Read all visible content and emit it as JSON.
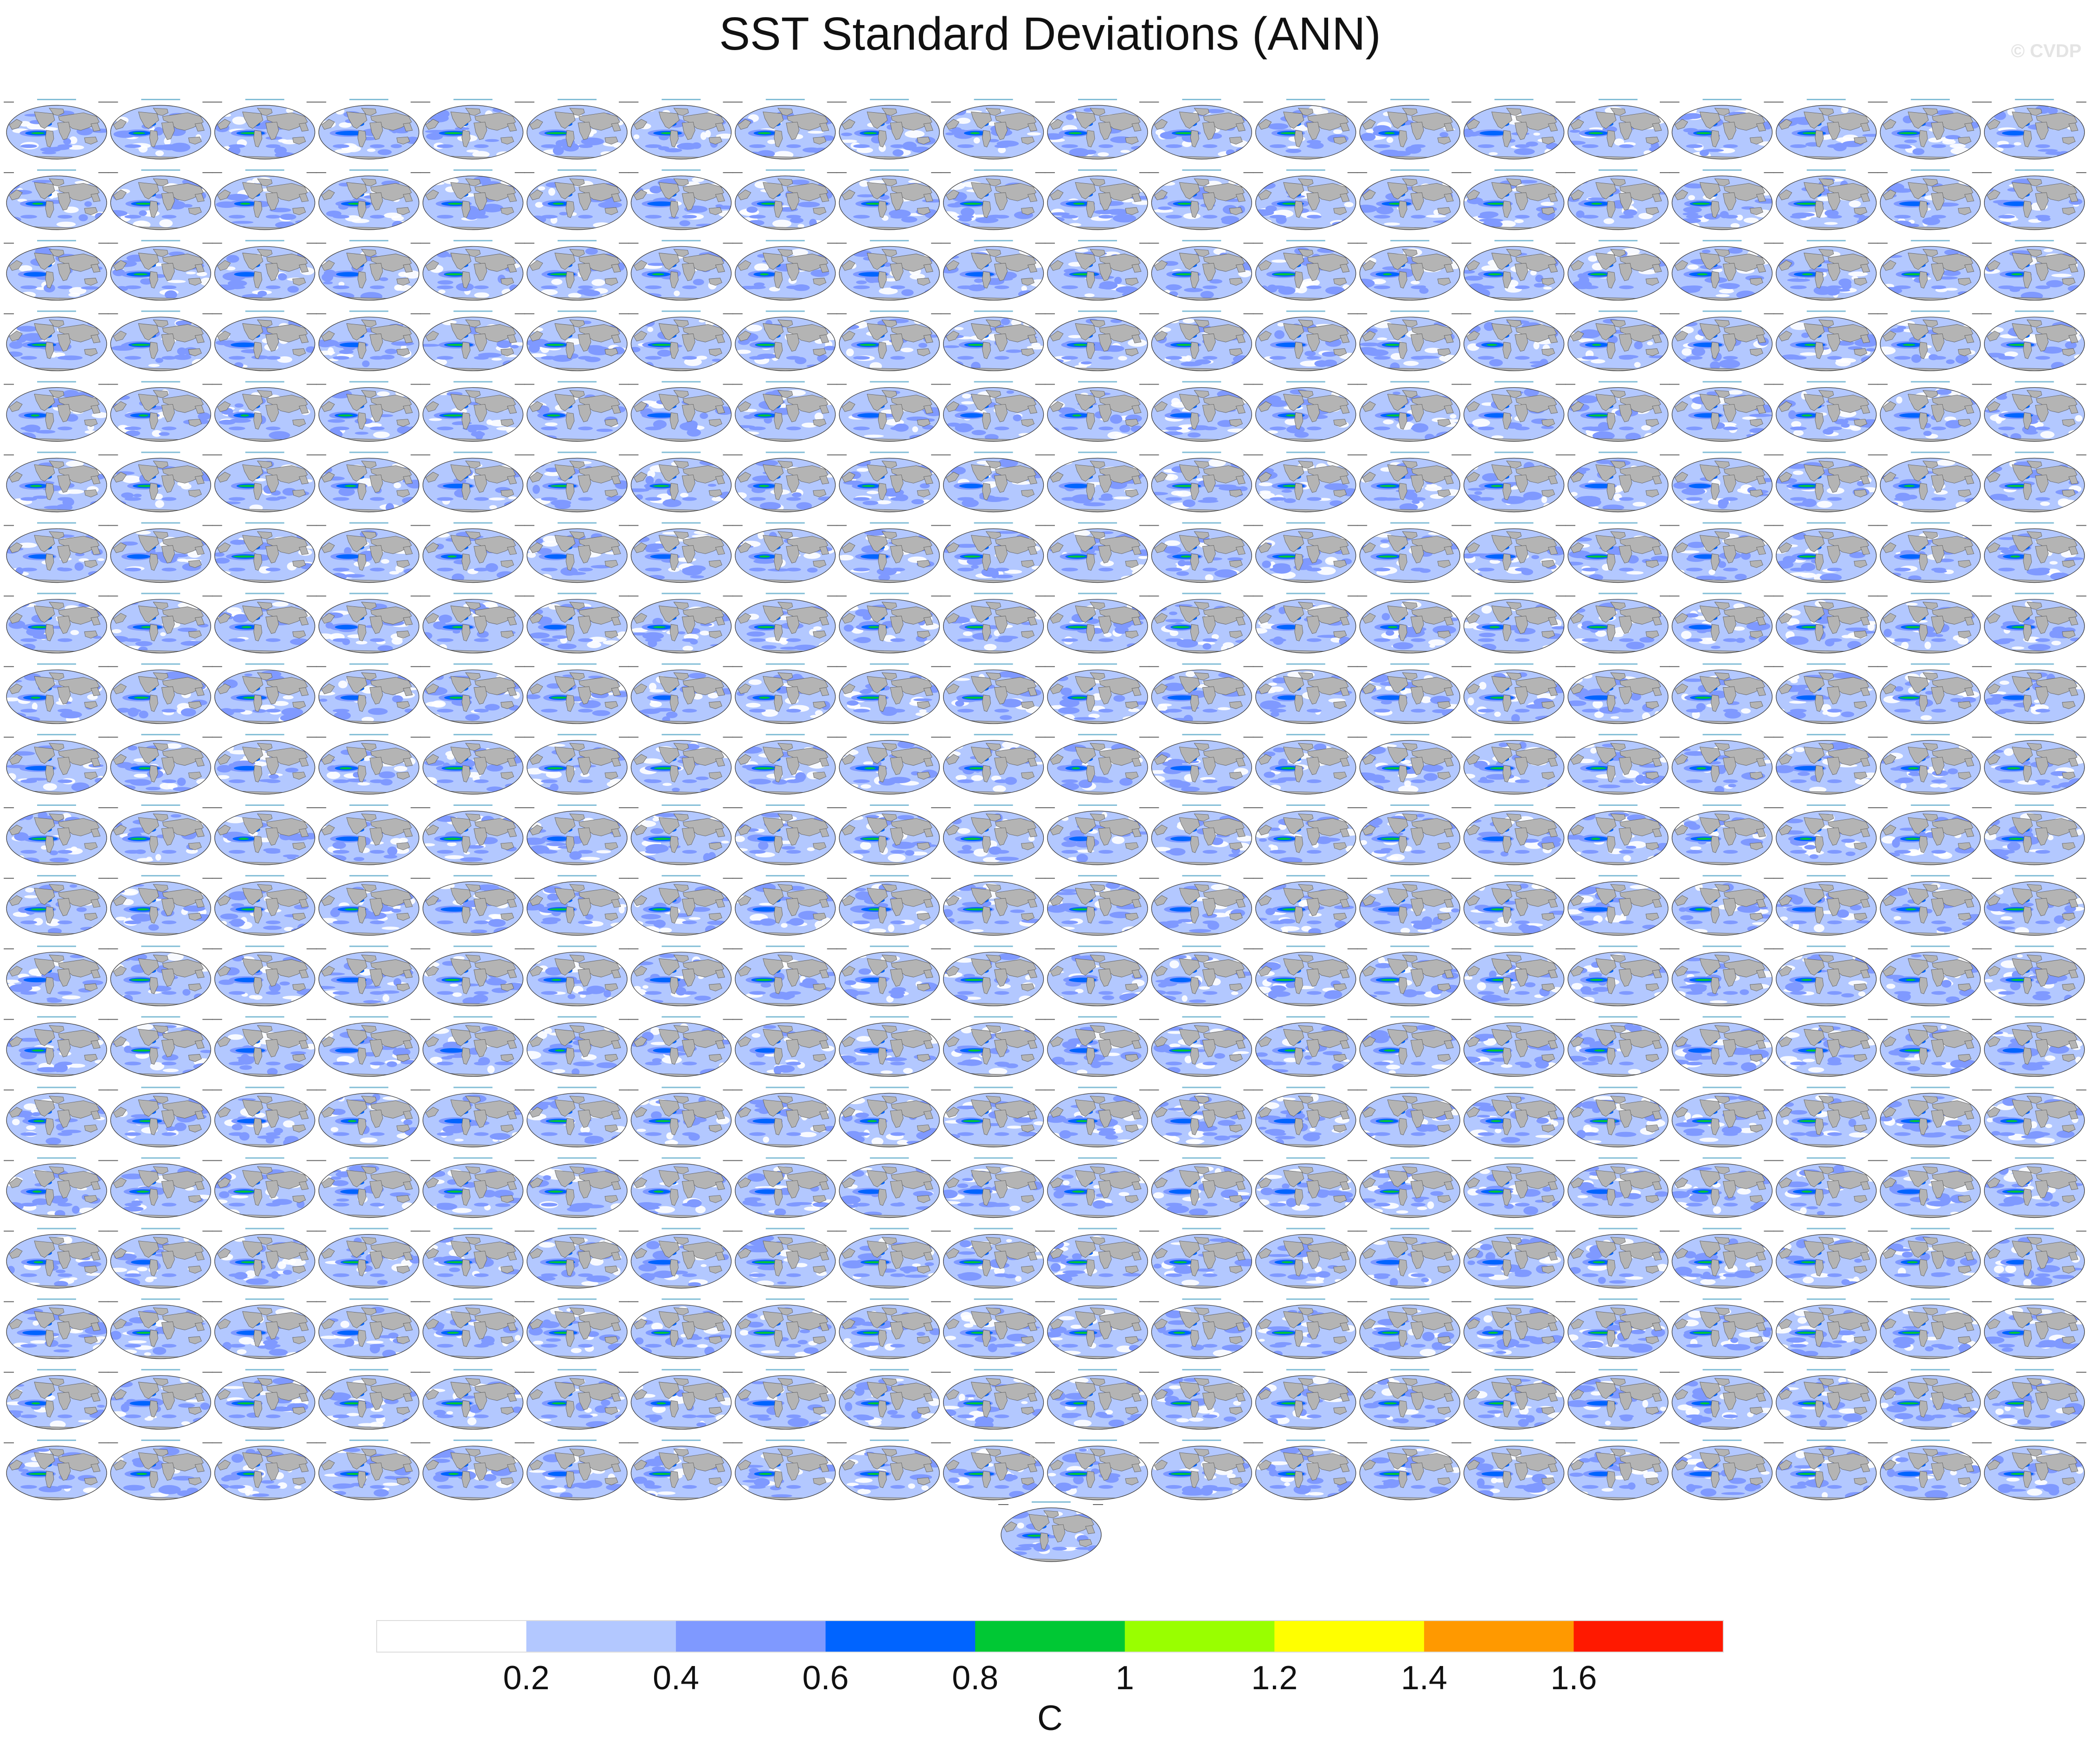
{
  "title": "SST Standard Deviations (ANN)",
  "watermark": "© CVDP",
  "chart_data": {
    "type": "heatmap",
    "title": "SST Standard Deviations (ANN)",
    "panels": {
      "rows": 20,
      "cols": 20,
      "extra_panels": 1,
      "total_panels": 401,
      "panel_kind": "global map of SST standard deviation"
    },
    "colorbar": {
      "unit": "C",
      "tick_labels": [
        "0.2",
        "0.4",
        "0.6",
        "0.8",
        "1",
        "1.2",
        "1.4",
        "1.6"
      ],
      "bins": [
        {
          "from": 0.0,
          "to": 0.2,
          "color": "#ffffff"
        },
        {
          "from": 0.2,
          "to": 0.4,
          "color": "#b3c8ff"
        },
        {
          "from": 0.4,
          "to": 0.6,
          "color": "#7f99ff"
        },
        {
          "from": 0.6,
          "to": 0.8,
          "color": "#0064ff"
        },
        {
          "from": 0.8,
          "to": 1.0,
          "color": "#00c834"
        },
        {
          "from": 1.0,
          "to": 1.2,
          "color": "#99ff00"
        },
        {
          "from": 1.2,
          "to": 1.4,
          "color": "#ffff00"
        },
        {
          "from": 1.4,
          "to": 1.6,
          "color": "#ff9900"
        },
        {
          "from": 1.6,
          "to": 1.8,
          "color": "#ff1900"
        }
      ]
    }
  },
  "colors": {
    "land": "#b4b4b4",
    "coast": "#5a5a5a"
  }
}
